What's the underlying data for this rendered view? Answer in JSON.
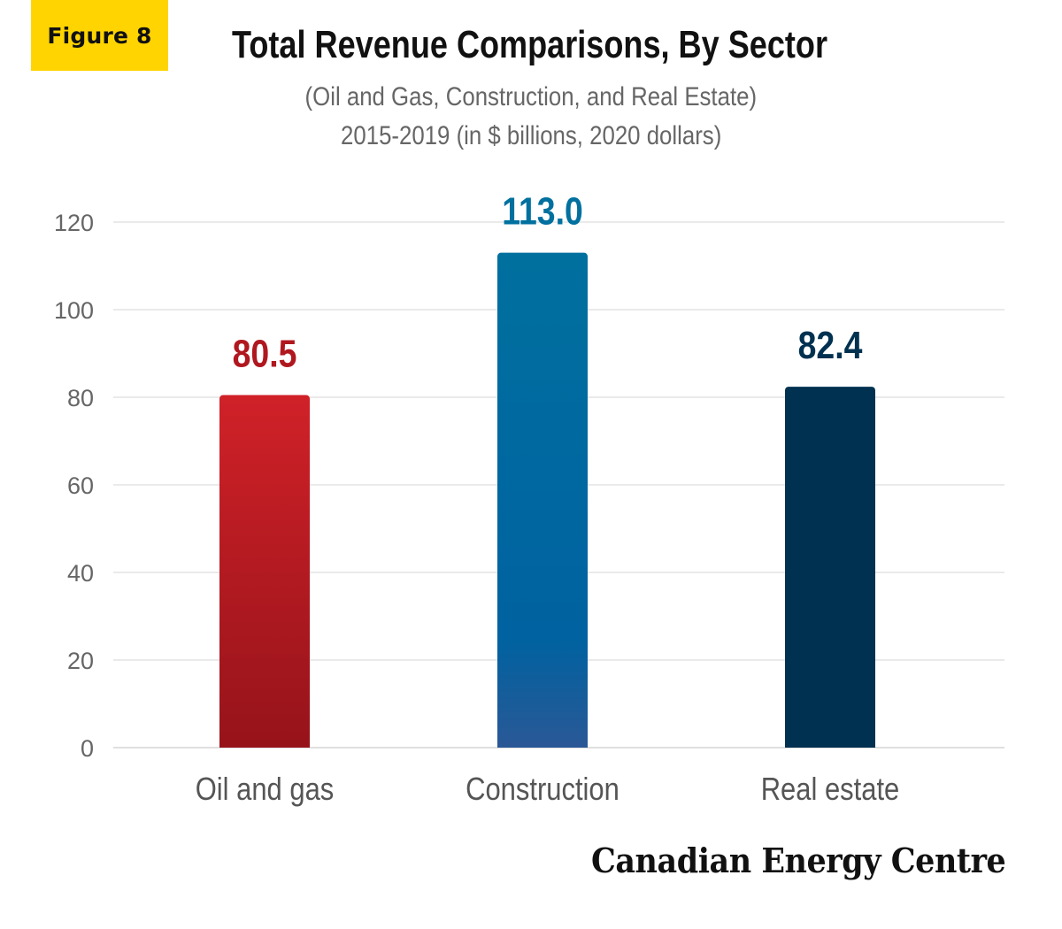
{
  "badge": {
    "label": "Figure 8"
  },
  "header": {
    "title": "Total Revenue Comparisons, By Sector",
    "subtitle_line1": "(Oil and Gas, Construction, and Real Estate)",
    "subtitle_line2": "2015-2019 (in $ billions, 2020 dollars)"
  },
  "footer": {
    "brand": "Canadian Energy Centre"
  },
  "colors": {
    "oil_gas_top": "#d02128",
    "oil_gas_bottom": "#96131a",
    "construction_top": "#00709f",
    "construction_bottom": "#2a5896",
    "real_estate": "#003150",
    "tick_text": "#666666",
    "grid": "#e3e3e3"
  },
  "chart_data": {
    "type": "bar",
    "title": "Total Revenue Comparisons, By Sector",
    "subtitle": "(Oil and Gas, Construction, and Real Estate) 2015-2019 (in $ billions, 2020 dollars)",
    "xlabel": "",
    "ylabel": "",
    "categories": [
      "Oil and gas",
      "Construction",
      "Real estate"
    ],
    "values": [
      80.5,
      113.0,
      82.4
    ],
    "value_labels": [
      "80.5",
      "113.0",
      "82.4"
    ],
    "ylim": [
      0,
      120
    ],
    "yticks": [
      0,
      20,
      40,
      60,
      80,
      100,
      120
    ],
    "grid": true,
    "legend": "none"
  }
}
